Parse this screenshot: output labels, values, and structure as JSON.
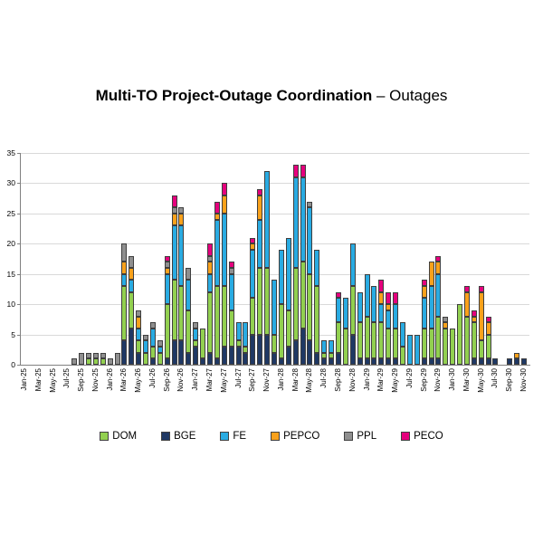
{
  "title": {
    "bold": "Multi-TO Project-Outage Coordination",
    "normal": " – Outages"
  },
  "chart_data": {
    "type": "bar",
    "stacked": true,
    "title": "Multi-TO Project-Outage Coordination – Outages",
    "xlabel": "",
    "ylabel": "",
    "ylim": [
      0,
      35
    ],
    "yticks": [
      0,
      5,
      10,
      15,
      20,
      25,
      30,
      35
    ],
    "grid": true,
    "legend_position": "bottom",
    "tick_every": 2,
    "stack_order": [
      "BGE",
      "DOM",
      "FE",
      "PEPCO",
      "PPL",
      "PECO"
    ],
    "categories": [
      "Jan-25",
      "Feb-25",
      "Mar-25",
      "Apr-25",
      "May-25",
      "Jun-25",
      "Jul-25",
      "Aug-25",
      "Sep-25",
      "Oct-25",
      "Nov-25",
      "Dec-25",
      "Jan-26",
      "Feb-26",
      "Mar-26",
      "Apr-26",
      "May-26",
      "Jun-26",
      "Jul-26",
      "Aug-26",
      "Sep-26",
      "Oct-26",
      "Nov-26",
      "Dec-26",
      "Jan-27",
      "Feb-27",
      "Mar-27",
      "Apr-27",
      "May-27",
      "Jun-27",
      "Jul-27",
      "Aug-27",
      "Sep-27",
      "Oct-27",
      "Nov-27",
      "Dec-27",
      "Jan-28",
      "Feb-28",
      "Mar-28",
      "Apr-28",
      "May-28",
      "Jun-28",
      "Jul-28",
      "Aug-28",
      "Sep-28",
      "Oct-28",
      "Nov-28",
      "Dec-28",
      "Jan-29",
      "Feb-29",
      "Mar-29",
      "Apr-29",
      "May-29",
      "Jun-29",
      "Jul-29",
      "Aug-29",
      "Sep-29",
      "Oct-29",
      "Nov-29",
      "Dec-29",
      "Jan-30",
      "Feb-30",
      "Mar-30",
      "Apr-30",
      "May-30",
      "Jun-30",
      "Jul-30",
      "Aug-30",
      "Sep-30",
      "Oct-30",
      "Nov-30"
    ],
    "series": [
      {
        "name": "DOM",
        "color": "#92d050",
        "values": [
          0,
          0,
          0,
          0,
          0,
          0,
          0,
          0,
          0,
          1,
          1,
          1,
          0,
          0,
          9,
          6,
          2,
          2,
          2,
          2,
          9,
          10,
          9,
          7,
          1,
          5,
          10,
          12,
          10,
          6,
          1,
          1,
          6,
          11,
          11,
          3,
          9,
          6,
          12,
          11,
          11,
          11,
          1,
          1,
          5,
          6,
          8,
          6,
          7,
          6,
          6,
          5,
          5,
          3,
          0,
          0,
          5,
          5,
          7,
          6,
          6,
          10,
          8,
          6,
          3,
          4,
          0,
          0,
          0,
          0,
          0
        ]
      },
      {
        "name": "BGE",
        "color": "#1f3864",
        "values": [
          0,
          0,
          0,
          0,
          0,
          0,
          0,
          0,
          0,
          0,
          0,
          0,
          0,
          0,
          4,
          6,
          2,
          0,
          1,
          0,
          1,
          4,
          4,
          2,
          3,
          1,
          2,
          1,
          3,
          3,
          3,
          2,
          5,
          5,
          5,
          2,
          1,
          3,
          4,
          6,
          4,
          2,
          1,
          1,
          2,
          0,
          5,
          1,
          1,
          1,
          1,
          1,
          1,
          0,
          0,
          0,
          1,
          1,
          1,
          0,
          0,
          0,
          0,
          1,
          1,
          1,
          1,
          0,
          1,
          1,
          1
        ]
      },
      {
        "name": "FE",
        "color": "#29abe2",
        "values": [
          0,
          0,
          0,
          0,
          0,
          0,
          0,
          0,
          0,
          0,
          0,
          0,
          0,
          0,
          2,
          2,
          2,
          2,
          3,
          1,
          5,
          9,
          10,
          5,
          2,
          0,
          3,
          11,
          12,
          6,
          3,
          4,
          8,
          8,
          16,
          9,
          9,
          12,
          15,
          14,
          11,
          6,
          2,
          2,
          4,
          5,
          7,
          5,
          7,
          6,
          3,
          3,
          4,
          4,
          5,
          5,
          5,
          7,
          7,
          0,
          0,
          0,
          0,
          0,
          0,
          0,
          0,
          0,
          0,
          0,
          0
        ]
      },
      {
        "name": "PEPCO",
        "color": "#f9a11b",
        "values": [
          0,
          0,
          0,
          0,
          0,
          0,
          0,
          0,
          0,
          0,
          0,
          0,
          0,
          0,
          2,
          2,
          2,
          0,
          0,
          0,
          1,
          2,
          2,
          0,
          0,
          0,
          2,
          1,
          3,
          0,
          0,
          0,
          1,
          4,
          0,
          0,
          0,
          0,
          0,
          0,
          0,
          0,
          0,
          0,
          0,
          0,
          0,
          0,
          0,
          0,
          2,
          1,
          0,
          0,
          0,
          0,
          2,
          4,
          2,
          1,
          0,
          0,
          4,
          1,
          8,
          2,
          0,
          0,
          0,
          1,
          0
        ]
      },
      {
        "name": "PPL",
        "color": "#8f8f8f",
        "values": [
          0,
          0,
          0,
          0,
          0,
          0,
          0,
          1,
          2,
          1,
          1,
          1,
          1,
          2,
          3,
          2,
          1,
          1,
          1,
          1,
          1,
          1,
          1,
          2,
          1,
          0,
          1,
          0,
          0,
          1,
          0,
          0,
          0,
          0,
          0,
          0,
          0,
          0,
          0,
          0,
          1,
          0,
          0,
          0,
          0,
          0,
          0,
          0,
          0,
          0,
          0,
          0,
          0,
          0,
          0,
          0,
          0,
          0,
          0,
          1,
          0,
          0,
          0,
          0,
          0,
          0,
          0,
          0,
          0,
          0,
          0
        ]
      },
      {
        "name": "PECO",
        "color": "#e5007d",
        "values": [
          0,
          0,
          0,
          0,
          0,
          0,
          0,
          0,
          0,
          0,
          0,
          0,
          0,
          0,
          0,
          0,
          0,
          0,
          0,
          0,
          1,
          2,
          0,
          0,
          0,
          0,
          2,
          2,
          2,
          1,
          0,
          0,
          1,
          1,
          0,
          0,
          0,
          0,
          2,
          2,
          0,
          0,
          0,
          0,
          1,
          0,
          0,
          0,
          0,
          0,
          2,
          2,
          2,
          0,
          0,
          0,
          1,
          0,
          1,
          0,
          0,
          0,
          1,
          1,
          1,
          1,
          0,
          0,
          0,
          0,
          0
        ]
      }
    ]
  }
}
